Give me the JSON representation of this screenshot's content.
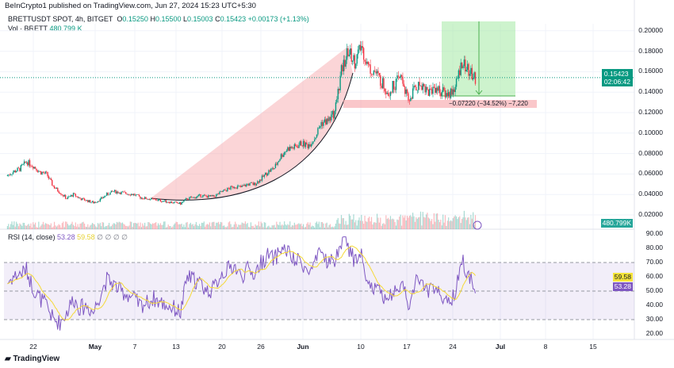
{
  "publisher": "BeInCrypto1 published on TradingView.com, Jun 27, 2024 15:23 UTC+5:30",
  "symbol": "BRETTUSDT SPOT, 4h, BITGET",
  "ohlc": {
    "o_label": "O",
    "o": "0.15250",
    "h_label": "H",
    "h": "0.15500",
    "l_label": "L",
    "l": "0.15003",
    "c_label": "C",
    "c": "0.15423",
    "change": "+0.00173 (+1.13%)"
  },
  "volume": {
    "label": "Vol · BRETT",
    "value": "480.799 K",
    "tag": "480.799K"
  },
  "rsi": {
    "label": "RSI (14, close)",
    "value": "53.28",
    "ma": "59.58",
    "icons": "∅ ∅ ∅ ∅"
  },
  "price_tag": {
    "price": "0.15423",
    "countdown": "02:06:42"
  },
  "position_label": "−0.07220 (−34.52%) −7,220",
  "price_axis": [
    "0.20000",
    "0.18000",
    "0.16000",
    "0.14000",
    "0.12000",
    "0.10000",
    "0.08000",
    "0.06000",
    "0.04000",
    "0.02000"
  ],
  "rsi_axis": [
    "90.00",
    "80.00",
    "70.00",
    "60.00",
    "50.00",
    "40.00",
    "30.00",
    "20.00"
  ],
  "x_axis": [
    "22",
    "May",
    "7",
    "13",
    "20",
    "26",
    "Jun",
    "10",
    "17",
    "24",
    "Jul",
    "8",
    "15"
  ],
  "brand": "TradingView",
  "colors": {
    "up": "#089981",
    "down": "#f23645",
    "rsi": "#7e57c2",
    "rsi_ma": "#f5d936"
  },
  "chart_data": {
    "type": "candlestick",
    "start": "Apr 18",
    "interval": "1d (drawn as 4h)",
    "closes": [
      0.058,
      0.062,
      0.065,
      0.072,
      0.068,
      0.062,
      0.06,
      0.048,
      0.042,
      0.036,
      0.04,
      0.036,
      0.034,
      0.032,
      0.035,
      0.04,
      0.043,
      0.042,
      0.041,
      0.04,
      0.037,
      0.036,
      0.035,
      0.034,
      0.033,
      0.032,
      0.031,
      0.036,
      0.037,
      0.039,
      0.038,
      0.038,
      0.042,
      0.045,
      0.048,
      0.047,
      0.05,
      0.05,
      0.055,
      0.062,
      0.066,
      0.078,
      0.085,
      0.086,
      0.09,
      0.088,
      0.095,
      0.11,
      0.112,
      0.12,
      0.16,
      0.18,
      0.17,
      0.185,
      0.165,
      0.16,
      0.15,
      0.14,
      0.148,
      0.155,
      0.13,
      0.145,
      0.148,
      0.14,
      0.145,
      0.14,
      0.138,
      0.145,
      0.17,
      0.16,
      0.154
    ],
    "rsi": [
      55,
      60,
      62,
      65,
      52,
      45,
      40,
      30,
      28,
      35,
      45,
      38,
      40,
      35,
      48,
      58,
      55,
      50,
      48,
      45,
      40,
      42,
      45,
      42,
      40,
      38,
      35,
      60,
      58,
      55,
      50,
      52,
      62,
      65,
      68,
      60,
      65,
      62,
      70,
      75,
      72,
      80,
      78,
      70,
      72,
      62,
      68,
      78,
      70,
      72,
      85,
      82,
      70,
      75,
      55,
      52,
      48,
      45,
      52,
      55,
      40,
      55,
      58,
      50,
      52,
      45,
      40,
      48,
      72,
      60,
      53
    ],
    "price_range": [
      0.0,
      0.21
    ],
    "rsi_range": [
      15,
      95
    ]
  }
}
